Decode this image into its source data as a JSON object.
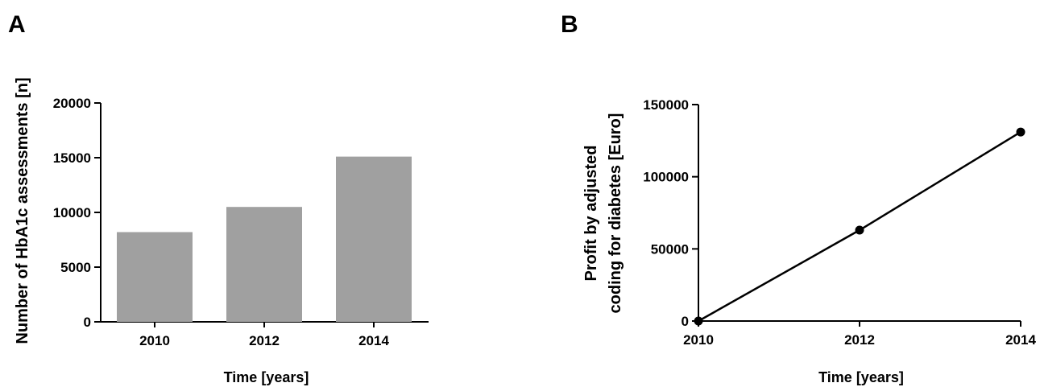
{
  "panels": {
    "a": "A",
    "b": "B"
  },
  "chart_data": [
    {
      "type": "bar",
      "categories": [
        "2010",
        "2012",
        "2014"
      ],
      "values": [
        8200,
        10500,
        15100
      ],
      "xlabel": "Time [years]",
      "ylabel": "Number of HbA1c assessments [n]",
      "ylim": [
        0,
        20000
      ],
      "yticks": [
        0,
        5000,
        10000,
        15000,
        20000
      ],
      "bar_color": "#a0a0a0",
      "grid": false
    },
    {
      "type": "line",
      "x": [
        2010,
        2012,
        2014
      ],
      "y": [
        0,
        63000,
        131000
      ],
      "xticks": [
        "2010",
        "2012",
        "2014"
      ],
      "xlabel": "Time [years]",
      "ylabel": [
        "Profit by adjusted",
        "coding for diabetes [Euro]"
      ],
      "xlim": [
        2010,
        2014
      ],
      "ylim": [
        0,
        150000
      ],
      "yticks": [
        0,
        50000,
        100000,
        150000
      ],
      "marker": "circle",
      "line_color": "#000000",
      "grid": false
    }
  ]
}
